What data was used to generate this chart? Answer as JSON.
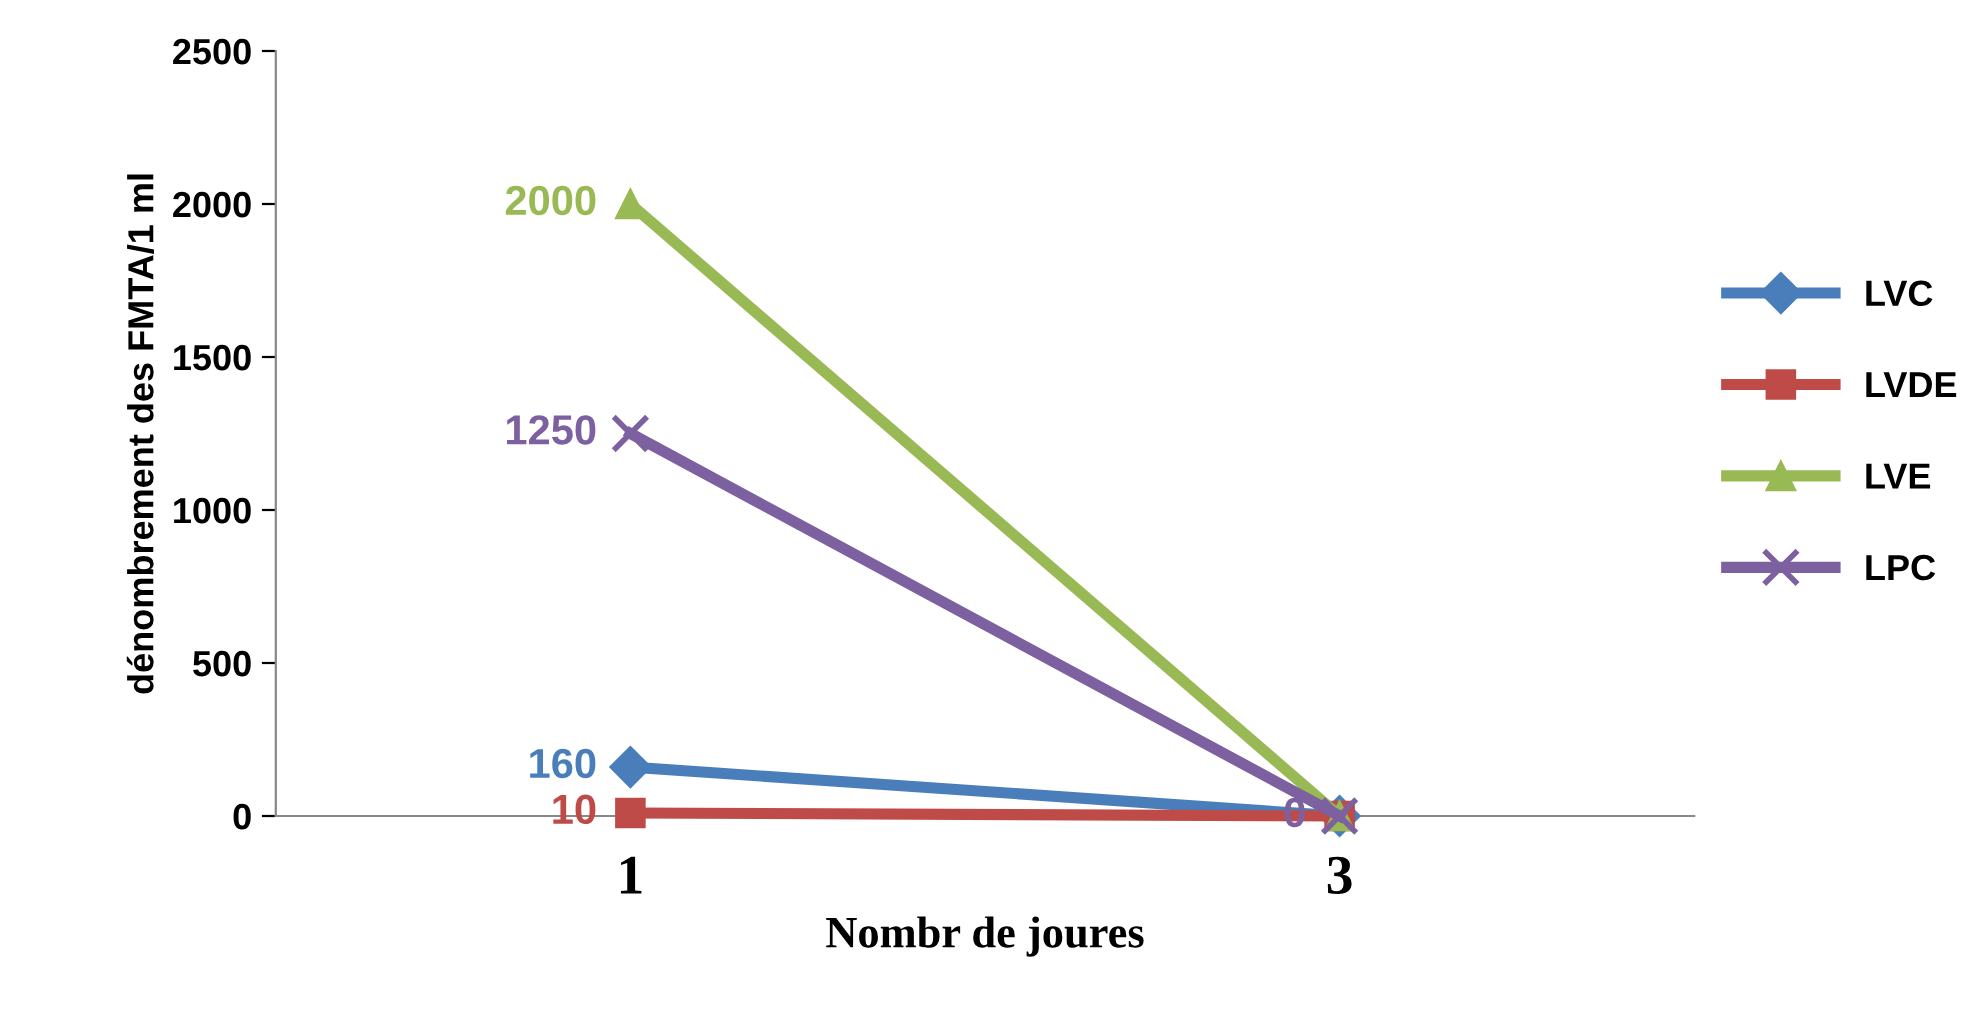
{
  "chart_data": {
    "type": "line",
    "xlabel": "Nombr de joures",
    "ylabel": "dénombrement des FMTA/1 ml",
    "categories": [
      "1",
      "3"
    ],
    "ylim": [
      0,
      2500
    ],
    "yticks": [
      0,
      500,
      1000,
      1500,
      2000,
      2500
    ],
    "grid": false,
    "legend": "right",
    "series": [
      {
        "name": "LVC",
        "color": "#4a7ebb",
        "marker": "diamond",
        "values": [
          160,
          0
        ],
        "value_labels": [
          "160",
          null
        ]
      },
      {
        "name": "LVDE",
        "color": "#be4b48",
        "marker": "square",
        "values": [
          10,
          0
        ],
        "value_labels": [
          "10",
          null
        ]
      },
      {
        "name": "LVE",
        "color": "#98b954",
        "marker": "triangle",
        "values": [
          2000,
          0
        ],
        "value_labels": [
          "2000",
          null
        ]
      },
      {
        "name": "LPC",
        "color": "#7d60a0",
        "marker": "cross",
        "values": [
          1250,
          0
        ],
        "value_labels": [
          "1250",
          "0"
        ]
      }
    ]
  }
}
